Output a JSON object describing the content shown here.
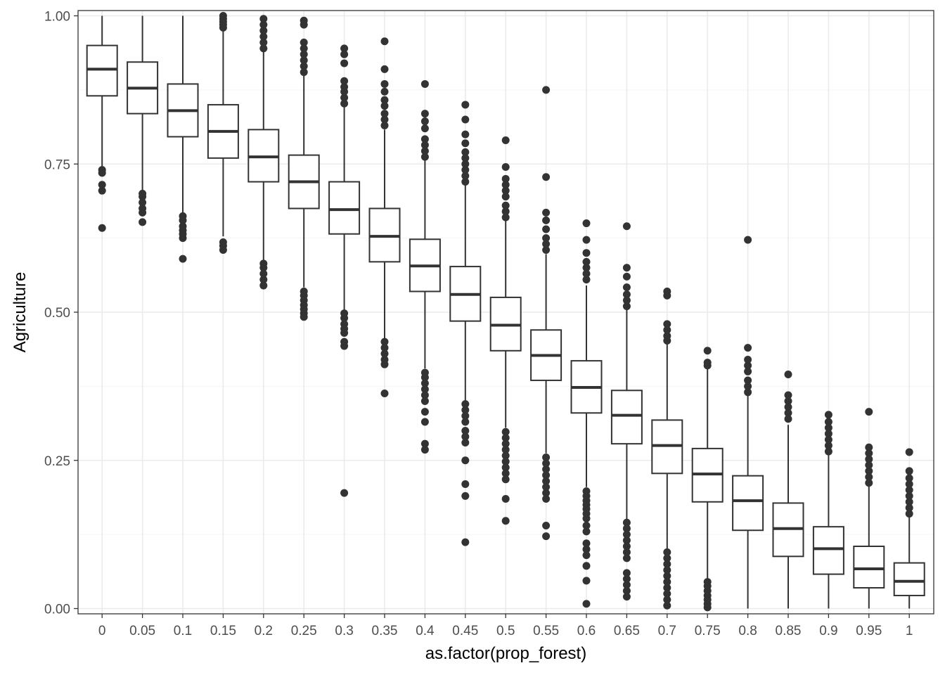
{
  "chart_data": {
    "type": "boxplot",
    "xlabel": "as.factor(prop_forest)",
    "ylabel": "Agriculture",
    "ylim": [
      0,
      1
    ],
    "yticks": [
      "0.00",
      "0.25",
      "0.50",
      "0.75",
      "1.00"
    ],
    "ytick_values": [
      0,
      0.25,
      0.5,
      0.75,
      1.0
    ],
    "grid": true,
    "theme": "bw",
    "colors": {
      "box_line": "#333333",
      "point": "#333333",
      "panel_border": "#333333",
      "grid_major": "#ebebeb",
      "grid_minor": "#f5f5f5"
    },
    "categories": [
      "0",
      "0.05",
      "0.1",
      "0.15",
      "0.2",
      "0.25",
      "0.3",
      "0.35",
      "0.4",
      "0.45",
      "0.5",
      "0.55",
      "0.6",
      "0.65",
      "0.7",
      "0.75",
      "0.8",
      "0.85",
      "0.9",
      "0.95",
      "1"
    ],
    "boxes": [
      {
        "category": "0",
        "min": 0.745,
        "q1": 0.865,
        "median": 0.91,
        "q3": 0.95,
        "max": 1.0,
        "outliers": [
          0.74,
          0.735,
          0.715,
          0.705,
          0.642
        ]
      },
      {
        "category": "0.05",
        "min": 0.705,
        "q1": 0.835,
        "median": 0.878,
        "q3": 0.922,
        "max": 1.0,
        "outliers": [
          0.7,
          0.695,
          0.685,
          0.675,
          0.668,
          0.652
        ]
      },
      {
        "category": "0.1",
        "min": 0.668,
        "q1": 0.796,
        "median": 0.84,
        "q3": 0.885,
        "max": 1.0,
        "outliers": [
          0.662,
          0.655,
          0.645,
          0.638,
          0.632,
          0.625,
          0.59
        ]
      },
      {
        "category": "0.15",
        "min": 0.628,
        "q1": 0.76,
        "median": 0.805,
        "q3": 0.85,
        "max": 0.978,
        "outliers": [
          0.618,
          0.612,
          0.605,
          0.98,
          0.985,
          0.99,
          0.995,
          1.0
        ]
      },
      {
        "category": "0.2",
        "min": 0.588,
        "q1": 0.72,
        "median": 0.762,
        "q3": 0.808,
        "max": 0.94,
        "outliers": [
          0.582,
          0.575,
          0.565,
          0.555,
          0.545,
          0.945,
          0.955,
          0.965,
          0.975,
          0.985,
          0.995
        ]
      },
      {
        "category": "0.25",
        "min": 0.542,
        "q1": 0.675,
        "median": 0.72,
        "q3": 0.765,
        "max": 0.9,
        "outliers": [
          0.535,
          0.528,
          0.52,
          0.512,
          0.505,
          0.498,
          0.492,
          0.905,
          0.915,
          0.925,
          0.935,
          0.945,
          0.955,
          0.985,
          0.992
        ]
      },
      {
        "category": "0.3",
        "min": 0.502,
        "q1": 0.632,
        "median": 0.673,
        "q3": 0.72,
        "max": 0.848,
        "outliers": [
          0.498,
          0.49,
          0.48,
          0.472,
          0.465,
          0.45,
          0.443,
          0.195,
          0.852,
          0.862,
          0.872,
          0.88,
          0.89,
          0.92,
          0.935,
          0.945
        ]
      },
      {
        "category": "0.35",
        "min": 0.455,
        "q1": 0.585,
        "median": 0.628,
        "q3": 0.675,
        "max": 0.808,
        "outliers": [
          0.45,
          0.44,
          0.43,
          0.42,
          0.412,
          0.363,
          0.815,
          0.825,
          0.835,
          0.848,
          0.858,
          0.872,
          0.885,
          0.91,
          0.957
        ]
      },
      {
        "category": "0.4",
        "min": 0.405,
        "q1": 0.535,
        "median": 0.578,
        "q3": 0.623,
        "max": 0.758,
        "outliers": [
          0.398,
          0.39,
          0.38,
          0.37,
          0.36,
          0.35,
          0.332,
          0.315,
          0.278,
          0.268,
          0.762,
          0.772,
          0.782,
          0.792,
          0.81,
          0.822,
          0.835,
          0.885
        ]
      },
      {
        "category": "0.45",
        "min": 0.35,
        "q1": 0.485,
        "median": 0.53,
        "q3": 0.577,
        "max": 0.715,
        "outliers": [
          0.345,
          0.335,
          0.325,
          0.315,
          0.3,
          0.29,
          0.28,
          0.25,
          0.21,
          0.19,
          0.112,
          0.72,
          0.73,
          0.74,
          0.75,
          0.76,
          0.77,
          0.785,
          0.8,
          0.825,
          0.85
        ]
      },
      {
        "category": "0.5",
        "min": 0.305,
        "q1": 0.435,
        "median": 0.478,
        "q3": 0.525,
        "max": 0.655,
        "outliers": [
          0.298,
          0.288,
          0.278,
          0.268,
          0.258,
          0.248,
          0.238,
          0.228,
          0.218,
          0.185,
          0.148,
          0.66,
          0.67,
          0.68,
          0.695,
          0.705,
          0.715,
          0.725,
          0.745,
          0.79
        ]
      },
      {
        "category": "0.55",
        "min": 0.262,
        "q1": 0.385,
        "median": 0.427,
        "q3": 0.47,
        "max": 0.598,
        "outliers": [
          0.255,
          0.245,
          0.235,
          0.225,
          0.215,
          0.205,
          0.195,
          0.185,
          0.14,
          0.122,
          0.605,
          0.615,
          0.625,
          0.64,
          0.655,
          0.668,
          0.728,
          0.875
        ]
      },
      {
        "category": "0.6",
        "min": 0.205,
        "q1": 0.33,
        "median": 0.373,
        "q3": 0.418,
        "max": 0.545,
        "outliers": [
          0.198,
          0.19,
          0.182,
          0.175,
          0.168,
          0.16,
          0.152,
          0.14,
          0.13,
          0.11,
          0.1,
          0.09,
          0.072,
          0.047,
          0.008,
          0.555,
          0.565,
          0.575,
          0.585,
          0.6,
          0.622,
          0.65
        ]
      },
      {
        "category": "0.65",
        "min": 0.15,
        "q1": 0.278,
        "median": 0.326,
        "q3": 0.368,
        "max": 0.505,
        "outliers": [
          0.145,
          0.135,
          0.125,
          0.115,
          0.105,
          0.095,
          0.085,
          0.06,
          0.05,
          0.04,
          0.03,
          0.02,
          0.51,
          0.52,
          0.53,
          0.542,
          0.56,
          0.575,
          0.645
        ]
      },
      {
        "category": "0.7",
        "min": 0.1,
        "q1": 0.228,
        "median": 0.275,
        "q3": 0.318,
        "max": 0.448,
        "outliers": [
          0.095,
          0.085,
          0.075,
          0.065,
          0.055,
          0.045,
          0.035,
          0.025,
          0.015,
          0.005,
          0.452,
          0.46,
          0.47,
          0.48,
          0.528,
          0.535
        ]
      },
      {
        "category": "0.75",
        "min": 0.05,
        "q1": 0.18,
        "median": 0.227,
        "q3": 0.27,
        "max": 0.405,
        "outliers": [
          0.045,
          0.038,
          0.03,
          0.022,
          0.015,
          0.008,
          0.002,
          0.41,
          0.415,
          0.435
        ]
      },
      {
        "category": "0.8",
        "min": 0.0,
        "q1": 0.132,
        "median": 0.182,
        "q3": 0.224,
        "max": 0.36,
        "outliers": [
          0.365,
          0.375,
          0.385,
          0.4,
          0.41,
          0.42,
          0.44,
          0.622
        ]
      },
      {
        "category": "0.85",
        "min": 0.0,
        "q1": 0.088,
        "median": 0.135,
        "q3": 0.178,
        "max": 0.31,
        "outliers": [
          0.32,
          0.33,
          0.34,
          0.35,
          0.36,
          0.395
        ]
      },
      {
        "category": "0.9",
        "min": 0.0,
        "q1": 0.058,
        "median": 0.101,
        "q3": 0.138,
        "max": 0.26,
        "outliers": [
          0.265,
          0.275,
          0.285,
          0.295,
          0.305,
          0.315,
          0.327
        ]
      },
      {
        "category": "0.95",
        "min": 0.0,
        "q1": 0.035,
        "median": 0.067,
        "q3": 0.105,
        "max": 0.208,
        "outliers": [
          0.212,
          0.222,
          0.232,
          0.242,
          0.252,
          0.262,
          0.272,
          0.332
        ]
      },
      {
        "category": "1",
        "min": 0.0,
        "q1": 0.022,
        "median": 0.046,
        "q3": 0.077,
        "max": 0.155,
        "outliers": [
          0.16,
          0.17,
          0.18,
          0.19,
          0.2,
          0.21,
          0.22,
          0.232,
          0.264
        ]
      }
    ]
  }
}
